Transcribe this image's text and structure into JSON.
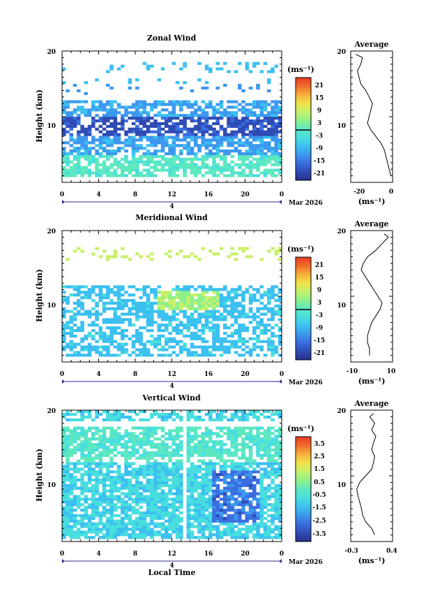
{
  "colors": {
    "scale": [
      "#2a2e8c",
      "#2f4bb4",
      "#3a6ee0",
      "#3c98ee",
      "#3cc0f0",
      "#49dede",
      "#5ee8c0",
      "#8ef08a",
      "#c8f06a",
      "#f0e24a",
      "#f6b23a",
      "#f26a2c",
      "#e83a26"
    ]
  },
  "chart_data": [
    {
      "type": "heatmap",
      "title": "Zonal Wind",
      "ylabel": "Height (km)",
      "ylim": [
        0,
        20
      ],
      "yticks": [
        "20",
        "10"
      ],
      "xlim": [
        0,
        24
      ],
      "xticks": [
        "0",
        "4",
        "8",
        "12",
        "16",
        "20",
        "0"
      ],
      "date_axis": {
        "tick": "4",
        "label": "Mar 2026"
      },
      "colorbar": {
        "unit": "(ms⁻¹)",
        "ticks": [
          "21",
          "15",
          "9",
          "3",
          "-3",
          "-9",
          "-15",
          "-21"
        ],
        "range": [
          -24,
          24
        ],
        "zero_line": true
      },
      "average": {
        "title": "Average",
        "xlim": [
          -25,
          0
        ],
        "xticks": [
          "-20",
          "0"
        ],
        "xlabel": "(ms⁻¹)",
        "yticks": [
          "20",
          "10"
        ],
        "profile": [
          [
            -1,
            1
          ],
          [
            -2,
            2
          ],
          [
            -3,
            3
          ],
          [
            -4,
            4
          ],
          [
            -5,
            5
          ],
          [
            -7,
            6
          ],
          [
            -10,
            7
          ],
          [
            -13,
            8
          ],
          [
            -15,
            9
          ],
          [
            -14,
            10
          ],
          [
            -13,
            11
          ],
          [
            -12,
            12
          ],
          [
            -14,
            13
          ],
          [
            -16,
            14
          ],
          [
            -19,
            15
          ],
          [
            -20,
            16
          ],
          [
            -21,
            17
          ],
          [
            -19,
            18
          ],
          [
            -18,
            19
          ],
          [
            -22,
            19.5
          ]
        ]
      }
    },
    {
      "type": "heatmap",
      "title": "Meridional Wind",
      "ylabel": "Height (km)",
      "ylim": [
        0,
        20
      ],
      "yticks": [
        "20",
        "10"
      ],
      "xlim": [
        0,
        24
      ],
      "xticks": [
        "0",
        "4",
        "8",
        "12",
        "16",
        "20",
        "0"
      ],
      "date_axis": {
        "tick": "4",
        "label": "Mar 2026"
      },
      "colorbar": {
        "unit": "(ms⁻¹)",
        "ticks": [
          "21",
          "15",
          "9",
          "3",
          "-3",
          "-9",
          "-15",
          "-21"
        ],
        "range": [
          -24,
          24
        ],
        "zero_line": true
      },
      "average": {
        "title": "Average",
        "xlim": [
          -10,
          10
        ],
        "xticks": [
          "-10",
          "10"
        ],
        "xlabel": "(ms⁻¹)",
        "yticks": [
          "20",
          "10"
        ],
        "profile": [
          [
            -1,
            1
          ],
          [
            -1,
            2
          ],
          [
            -2,
            3
          ],
          [
            -2,
            4
          ],
          [
            -1,
            5
          ],
          [
            0,
            6
          ],
          [
            2,
            7
          ],
          [
            4,
            8
          ],
          [
            5,
            9
          ],
          [
            3,
            10
          ],
          [
            1,
            11
          ],
          [
            -1,
            12
          ],
          [
            -3,
            13
          ],
          [
            -5,
            14
          ],
          [
            -4,
            15
          ],
          [
            -2,
            16
          ],
          [
            2,
            17
          ],
          [
            5,
            18
          ],
          [
            8,
            19
          ],
          [
            6,
            19.5
          ]
        ]
      }
    },
    {
      "type": "heatmap",
      "title": "Vertical Wind",
      "ylabel": "Height (km)",
      "xlabel": "Local Time",
      "ylim": [
        0,
        20
      ],
      "yticks": [
        "20",
        "10"
      ],
      "xlim": [
        0,
        24
      ],
      "xticks": [
        "0",
        "4",
        "8",
        "12",
        "16",
        "20",
        "0"
      ],
      "date_axis": {
        "tick": "4",
        "label": "Mar 2026"
      },
      "colorbar": {
        "unit": "(ms⁻¹)",
        "ticks": [
          "3.5",
          "2.5",
          "1.5",
          "0.5",
          "-0.5",
          "-1.5",
          "-2.5",
          "-3.5"
        ],
        "range": [
          -4,
          4
        ],
        "zero_line": false
      },
      "average": {
        "title": "Average",
        "xlim": [
          -0.3,
          0.4
        ],
        "xticks": [
          "-0.3",
          "0.4"
        ],
        "xlabel": "(ms⁻¹)",
        "yticks": [
          "20",
          "10"
        ],
        "profile": [
          [
            0.1,
            1
          ],
          [
            0.05,
            2
          ],
          [
            -0.05,
            3
          ],
          [
            -0.1,
            4
          ],
          [
            -0.12,
            5
          ],
          [
            -0.15,
            6
          ],
          [
            -0.18,
            7
          ],
          [
            -0.2,
            8
          ],
          [
            -0.15,
            9
          ],
          [
            -0.05,
            10
          ],
          [
            0.05,
            11
          ],
          [
            0.08,
            12
          ],
          [
            0.1,
            13
          ],
          [
            0.05,
            14
          ],
          [
            0.08,
            15
          ],
          [
            0.12,
            16
          ],
          [
            0.05,
            17
          ],
          [
            0.1,
            18
          ],
          [
            0.02,
            19
          ],
          [
            0.08,
            19.5
          ]
        ]
      }
    }
  ]
}
